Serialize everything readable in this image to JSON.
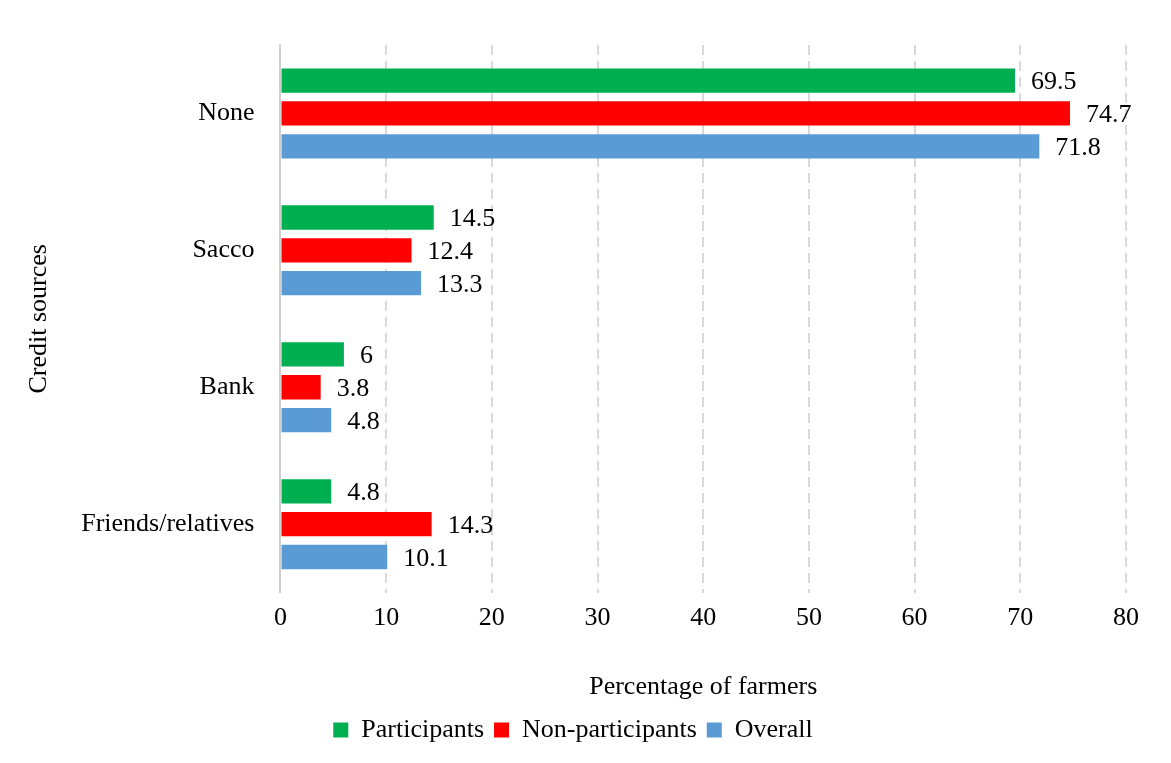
{
  "chart_data": {
    "type": "bar",
    "orientation": "horizontal",
    "xlabel": "Percentage of farmers",
    "ylabel": "Credit sources",
    "categories": [
      "None",
      "Sacco",
      "Bank",
      "Friends/relatives"
    ],
    "series": [
      {
        "name": "Participants",
        "color": "#00b050",
        "values": [
          69.5,
          14.5,
          6,
          4.8
        ]
      },
      {
        "name": "Non-participants",
        "color": "#ff0000",
        "values": [
          74.7,
          12.4,
          3.8,
          14.3
        ]
      },
      {
        "name": "Overall",
        "color": "#5b9bd5",
        "values": [
          71.8,
          13.3,
          4.8,
          10.1
        ]
      }
    ],
    "xlim": [
      0,
      80
    ],
    "xticks": [
      0,
      10,
      20,
      30,
      40,
      50,
      60,
      70,
      80
    ],
    "grid": "x",
    "legend": "bottom",
    "data_labels": true
  }
}
